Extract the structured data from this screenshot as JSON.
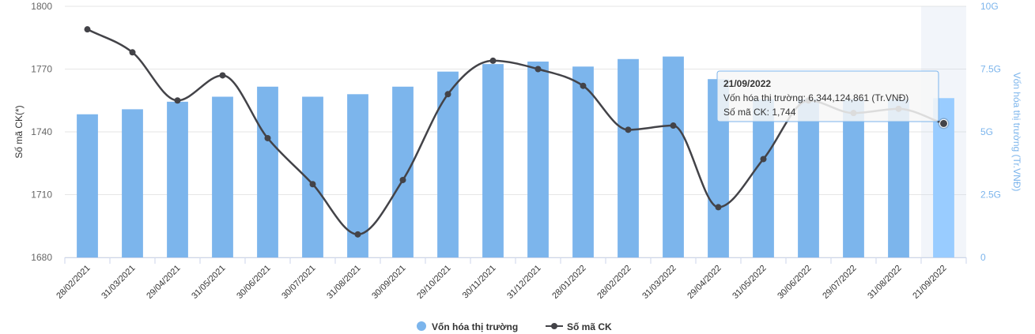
{
  "chart_data": {
    "type": "bar+line",
    "categories": [
      "28/02/2021",
      "31/03/2021",
      "29/04/2021",
      "31/05/2021",
      "30/06/2021",
      "30/07/2021",
      "31/08/2021",
      "30/09/2021",
      "29/10/2021",
      "30/11/2021",
      "31/12/2021",
      "28/01/2022",
      "28/02/2022",
      "31/03/2022",
      "29/04/2022",
      "31/05/2022",
      "30/06/2022",
      "29/07/2022",
      "31/08/2022",
      "21/09/2022"
    ],
    "series": [
      {
        "name": "Vốn hóa thị trường",
        "type": "bar",
        "axis": "right",
        "color": "#7cb5ec",
        "highlight_color": "#99ccff",
        "values": [
          5.7,
          5.9,
          6.2,
          6.4,
          6.8,
          6.4,
          6.5,
          6.8,
          7.4,
          7.7,
          7.8,
          7.6,
          7.9,
          8.0,
          7.1,
          6.3,
          6.3,
          6.3,
          6.3,
          6.344
        ]
      },
      {
        "name": "Số mã CK",
        "type": "line",
        "axis": "left",
        "color": "#434348",
        "values": [
          1789,
          1778,
          1755,
          1767,
          1737,
          1715,
          1691,
          1717,
          1758,
          1774,
          1770,
          1762,
          1741,
          1743,
          1704,
          1727,
          1755,
          1749,
          1751,
          1744
        ]
      }
    ],
    "y_left": {
      "label": "Số mã CK(*)",
      "min": 1680,
      "max": 1800,
      "ticks": [
        "1680",
        "1710",
        "1740",
        "1770",
        "1800"
      ]
    },
    "y_right": {
      "label": "Vốn hóa thị trường (Tr.VNĐ)",
      "min": 0,
      "max": 10,
      "ticks": [
        "0",
        "2.5G",
        "5G",
        "7.5G",
        "10G"
      ]
    },
    "legend": {
      "placement": "bottom-center"
    },
    "highlight_index": 19,
    "tooltip": {
      "date": "21/09/2022",
      "line1": "Vốn hóa thị trường: 6,344,124,861 (Tr.VNĐ)",
      "line2": "Số mã CK: 1,744"
    }
  }
}
